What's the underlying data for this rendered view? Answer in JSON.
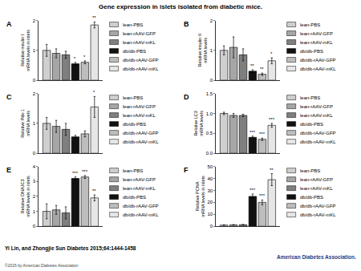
{
  "title": "Gene expression in islets isolated from diabetic mice.",
  "citation": "Yi Lin, and Zhongjie Sun Diabetes 2015;64:1444-1458",
  "copyright": "©2015 by American Diabetes Association",
  "logo_text": "American Diabetes Association.",
  "chart_data": [
    {
      "type": "bar",
      "title": "A",
      "y_label": "Relative insulin I mRNA levels in islets",
      "categories": [
        null
      ],
      "tick_labels": "y",
      "grid": false,
      "ylim": [
        0,
        2
      ],
      "yticks": [
        0,
        1,
        2
      ],
      "series": [
        {
          "name": "lean-PBS",
          "color": "#cfcfcf",
          "values": [
            1.0
          ],
          "errors": [
            0.2
          ],
          "annotations": [
            null
          ]
        },
        {
          "name": "lean-rAAV-GFP",
          "color": "#a6a6a6",
          "values": [
            0.9
          ],
          "errors": [
            0.15
          ],
          "annotations": [
            null
          ]
        },
        {
          "name": "lean-rAAV-mKL",
          "color": "#7f7f7f",
          "values": [
            0.85
          ],
          "errors": [
            0.12
          ],
          "annotations": [
            null
          ]
        },
        {
          "name": "db/db-PBS",
          "color": "#111111",
          "values": [
            0.55
          ],
          "errors": [
            0.05
          ],
          "annotations": [
            "*"
          ]
        },
        {
          "name": "db/db-rAAV-GFP",
          "color": "#bdbdbd",
          "values": [
            0.6
          ],
          "errors": [
            0.05
          ],
          "annotations": [
            "*"
          ]
        },
        {
          "name": "db/db-rAAV-mKL",
          "color": "#e6e6e6",
          "values": [
            1.85
          ],
          "errors": [
            0.1
          ],
          "annotations": [
            "**"
          ]
        }
      ]
    },
    {
      "type": "bar",
      "title": "B",
      "y_label": "Relative insulin II mRNA levels",
      "categories": [
        null
      ],
      "tick_labels": "y",
      "grid": false,
      "ylim": [
        0,
        2
      ],
      "yticks": [
        0,
        1,
        2
      ],
      "series": [
        {
          "name": "lean-PBS",
          "color": "#cfcfcf",
          "values": [
            1.0
          ],
          "errors": [
            0.15
          ],
          "annotations": [
            null
          ]
        },
        {
          "name": "lean-rAAV-GFP",
          "color": "#a6a6a6",
          "values": [
            1.1
          ],
          "errors": [
            0.35
          ],
          "annotations": [
            null
          ]
        },
        {
          "name": "lean-rAAV-mKL",
          "color": "#7f7f7f",
          "values": [
            0.85
          ],
          "errors": [
            0.2
          ],
          "annotations": [
            null
          ]
        },
        {
          "name": "db/db-PBS",
          "color": "#111111",
          "values": [
            0.3
          ],
          "errors": [
            0.05
          ],
          "annotations": [
            "**"
          ]
        },
        {
          "name": "db/db-rAAV-GFP",
          "color": "#bdbdbd",
          "values": [
            0.2
          ],
          "errors": [
            0.04
          ],
          "annotations": [
            "**"
          ]
        },
        {
          "name": "db/db-rAAV-mKL",
          "color": "#e6e6e6",
          "values": [
            0.65
          ],
          "errors": [
            0.1
          ],
          "annotations": [
            "*"
          ]
        }
      ]
    },
    {
      "type": "bar",
      "title": "C",
      "y_label": "Relative Pdx-1 mRNA levels",
      "categories": [
        null
      ],
      "tick_labels": "y",
      "grid": false,
      "ylim": [
        0,
        2
      ],
      "yticks": [
        0,
        1,
        2
      ],
      "series": [
        {
          "name": "lean-PBS",
          "color": "#cfcfcf",
          "values": [
            1.0
          ],
          "errors": [
            0.2
          ],
          "annotations": [
            null
          ]
        },
        {
          "name": "lean-rAAV-GFP",
          "color": "#a6a6a6",
          "values": [
            0.9
          ],
          "errors": [
            0.2
          ],
          "annotations": [
            null
          ]
        },
        {
          "name": "lean-rAAV-mKL",
          "color": "#7f7f7f",
          "values": [
            0.8
          ],
          "errors": [
            0.2
          ],
          "annotations": [
            null
          ]
        },
        {
          "name": "db/db-PBS",
          "color": "#111111",
          "values": [
            0.55
          ],
          "errors": [
            0.05
          ],
          "annotations": [
            null
          ]
        },
        {
          "name": "db/db-rAAV-GFP",
          "color": "#bdbdbd",
          "values": [
            0.65
          ],
          "errors": [
            0.1
          ],
          "annotations": [
            null
          ]
        },
        {
          "name": "db/db-rAAV-mKL",
          "color": "#e6e6e6",
          "values": [
            1.55
          ],
          "errors": [
            0.35
          ],
          "annotations": [
            "*"
          ]
        }
      ]
    },
    {
      "type": "bar",
      "title": "D",
      "y_label": "Relative LC3 mRNA levels",
      "categories": [
        null
      ],
      "tick_labels": "y",
      "grid": false,
      "ylim": [
        0,
        1.5
      ],
      "yticks": [
        {
          "value": 0,
          "label": "0.0"
        },
        0.5,
        {
          "value": 1,
          "label": "1.0"
        },
        1.5
      ],
      "series": [
        {
          "name": "lean-PBS",
          "color": "#cfcfcf",
          "values": [
            1.0
          ],
          "errors": [
            0.03
          ],
          "annotations": [
            null
          ]
        },
        {
          "name": "lean-rAAV-GFP",
          "color": "#a6a6a6",
          "values": [
            0.95
          ],
          "errors": [
            0.05
          ],
          "annotations": [
            null
          ]
        },
        {
          "name": "lean-rAAV-mKL",
          "color": "#7f7f7f",
          "values": [
            0.95
          ],
          "errors": [
            0.03
          ],
          "annotations": [
            null
          ]
        },
        {
          "name": "db/db-PBS",
          "color": "#111111",
          "values": [
            0.4
          ],
          "errors": [
            0.03
          ],
          "annotations": [
            "***"
          ]
        },
        {
          "name": "db/db-rAAV-GFP",
          "color": "#bdbdbd",
          "values": [
            0.35
          ],
          "errors": [
            0.03
          ],
          "annotations": [
            "***"
          ]
        },
        {
          "name": "db/db-rAAV-mKL",
          "color": "#e6e6e6",
          "values": [
            0.7
          ],
          "errors": [
            0.05
          ],
          "annotations": [
            "***"
          ]
        }
      ]
    },
    {
      "type": "bar",
      "title": "E",
      "y_label": "Relative DNAJC3 mRNA levels in islets",
      "categories": [
        null
      ],
      "tick_labels": "y",
      "grid": false,
      "ylim": [
        0,
        4
      ],
      "yticks": [
        0,
        1,
        2,
        3,
        4
      ],
      "series": [
        {
          "name": "lean-PBS",
          "color": "#cfcfcf",
          "values": [
            1.0
          ],
          "errors": [
            0.5
          ],
          "annotations": [
            null
          ]
        },
        {
          "name": "lean-rAAV-GFP",
          "color": "#a6a6a6",
          "values": [
            1.1
          ],
          "errors": [
            0.3
          ],
          "annotations": [
            null
          ]
        },
        {
          "name": "lean-rAAV-mKL",
          "color": "#7f7f7f",
          "values": [
            0.9
          ],
          "errors": [
            0.4
          ],
          "annotations": [
            null
          ]
        },
        {
          "name": "db/db-PBS",
          "color": "#111111",
          "values": [
            3.2
          ],
          "errors": [
            0.1
          ],
          "annotations": [
            "***"
          ]
        },
        {
          "name": "db/db-rAAV-GFP",
          "color": "#bdbdbd",
          "values": [
            3.3
          ],
          "errors": [
            0.1
          ],
          "annotations": [
            "***"
          ]
        },
        {
          "name": "db/db-rAAV-mKL",
          "color": "#e6e6e6",
          "values": [
            1.9
          ],
          "errors": [
            0.2
          ],
          "annotations": [
            "**"
          ]
        }
      ]
    },
    {
      "type": "bar",
      "title": "F",
      "y_label": "Relative PCNA mRNA levels in islets",
      "categories": [
        null
      ],
      "tick_labels": "y",
      "grid": false,
      "ylim": [
        0,
        50
      ],
      "yticks": [
        0,
        10,
        20,
        30,
        40,
        50
      ],
      "series": [
        {
          "name": "lean-PBS",
          "color": "#cfcfcf",
          "values": [
            1.0
          ],
          "errors": [
            0.2
          ],
          "annotations": [
            null
          ]
        },
        {
          "name": "lean-rAAV-GFP",
          "color": "#a6a6a6",
          "values": [
            1.2
          ],
          "errors": [
            0.2
          ],
          "annotations": [
            null
          ]
        },
        {
          "name": "lean-rAAV-mKL",
          "color": "#7f7f7f",
          "values": [
            1.3
          ],
          "errors": [
            0.2
          ],
          "annotations": [
            null
          ]
        },
        {
          "name": "db/db-PBS",
          "color": "#111111",
          "values": [
            25
          ],
          "errors": [
            2
          ],
          "annotations": [
            "***"
          ]
        },
        {
          "name": "db/db-rAAV-GFP",
          "color": "#bdbdbd",
          "values": [
            20
          ],
          "errors": [
            2
          ],
          "annotations": [
            "***"
          ]
        },
        {
          "name": "db/db-rAAV-mKL",
          "color": "#e6e6e6",
          "values": [
            39
          ],
          "errors": [
            5
          ],
          "annotations": [
            "**"
          ]
        }
      ]
    }
  ]
}
